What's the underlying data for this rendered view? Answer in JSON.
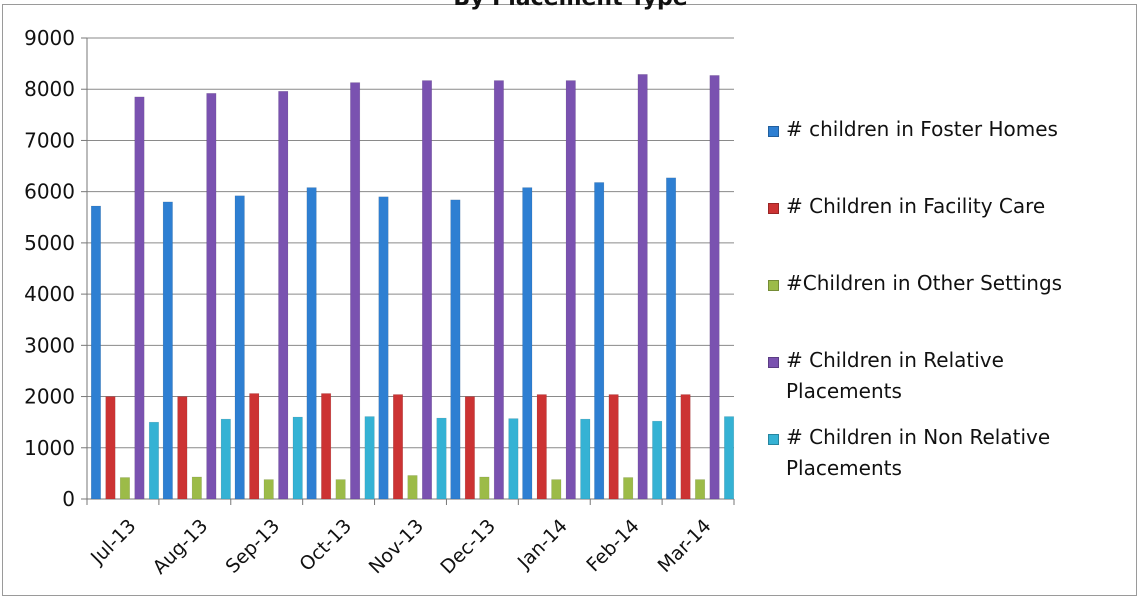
{
  "chart_data": {
    "type": "bar",
    "title": "By Placement Type",
    "categories": [
      "Jul-13",
      "Aug-13",
      "Sep-13",
      "Oct-13",
      "Nov-13",
      "Dec-13",
      "Jan-14",
      "Feb-14",
      "Mar-14"
    ],
    "ylim": [
      0,
      9000
    ],
    "yticks": [
      "0",
      "1000",
      "2000",
      "3000",
      "4000",
      "5000",
      "6000",
      "7000",
      "8000",
      "9000"
    ],
    "grid": true,
    "legend_position": "right",
    "series": [
      {
        "name": "# children in Foster Homes",
        "color": "#2e7fd2",
        "values": [
          5720,
          5800,
          5920,
          6080,
          5900,
          5840,
          6080,
          6180,
          6270
        ]
      },
      {
        "name": "# Children in Facility Care",
        "color": "#cc3333",
        "values": [
          2000,
          2000,
          2060,
          2060,
          2040,
          2000,
          2040,
          2040,
          2040
        ]
      },
      {
        "name": "#Children in Other Settings",
        "color": "#9cbb48",
        "values": [
          420,
          430,
          380,
          380,
          460,
          430,
          380,
          420,
          380
        ]
      },
      {
        "name": "# Children in Relative Placements",
        "color": "#7a52b0",
        "values": [
          7850,
          7920,
          7960,
          8130,
          8170,
          8170,
          8170,
          8290,
          8270
        ]
      },
      {
        "name": "# Children in Non Relative Placements",
        "color": "#35b2d4",
        "values": [
          1500,
          1560,
          1600,
          1610,
          1580,
          1570,
          1560,
          1520,
          1610
        ]
      }
    ]
  }
}
